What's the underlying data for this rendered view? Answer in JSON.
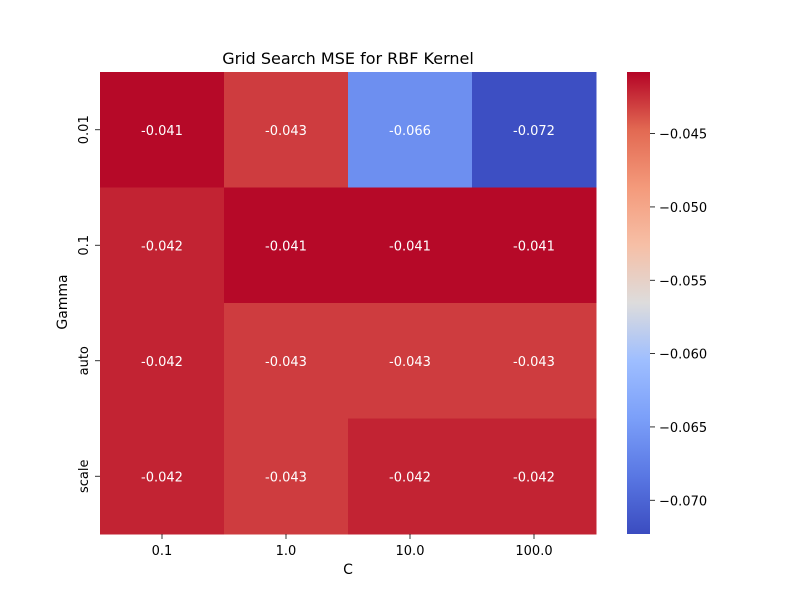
{
  "chart_data": {
    "type": "heatmap",
    "title": "Grid Search MSE for RBF Kernel",
    "xlabel": "C",
    "ylabel": "Gamma",
    "x_categories": [
      "0.1",
      "1.0",
      "10.0",
      "100.0"
    ],
    "y_categories": [
      "0.01",
      "0.1",
      "auto",
      "scale"
    ],
    "values": [
      [
        -0.041,
        -0.043,
        -0.066,
        -0.072
      ],
      [
        -0.042,
        -0.041,
        -0.041,
        -0.041
      ],
      [
        -0.042,
        -0.043,
        -0.043,
        -0.043
      ],
      [
        -0.042,
        -0.043,
        -0.042,
        -0.042
      ]
    ],
    "value_labels": [
      [
        "-0.041",
        "-0.043",
        "-0.066",
        "-0.072"
      ],
      [
        "-0.042",
        "-0.041",
        "-0.041",
        "-0.041"
      ],
      [
        "-0.042",
        "-0.043",
        "-0.043",
        "-0.043"
      ],
      [
        "-0.042",
        "-0.043",
        "-0.042",
        "-0.042"
      ]
    ],
    "colormap": "coolwarm",
    "colorbar": {
      "range": [
        -0.0723,
        -0.0408
      ],
      "ticks": [
        -0.07,
        -0.065,
        -0.06,
        -0.055,
        -0.05,
        -0.045
      ],
      "tick_labels": [
        "−0.070",
        "−0.065",
        "−0.060",
        "−0.055",
        "−0.050",
        "−0.045"
      ]
    },
    "grid": false,
    "annotation_color": "#ffffff"
  }
}
